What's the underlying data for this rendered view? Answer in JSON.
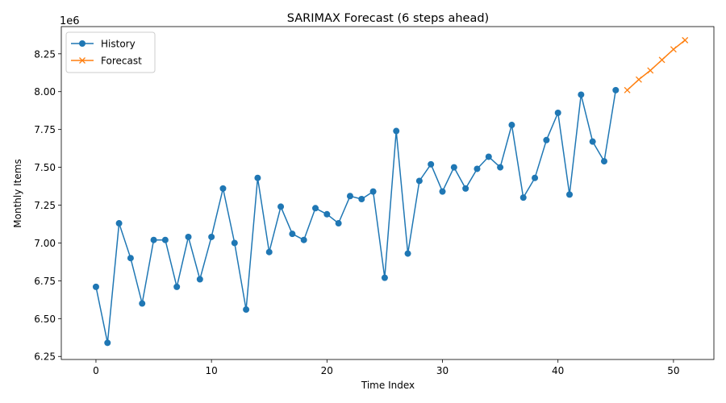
{
  "chart_data": {
    "type": "line",
    "title": "SARIMAX Forecast (6 steps ahead)",
    "xlabel": "Time Index",
    "ylabel": "Monthly Items",
    "offset_text": "1e6",
    "y_scale": 1000000,
    "xlim": [
      -3,
      53.5
    ],
    "ylim": [
      6230000,
      8430000
    ],
    "x_ticks": [
      0,
      10,
      20,
      30,
      40,
      50
    ],
    "x_tick_labels": [
      "0",
      "10",
      "20",
      "30",
      "40",
      "50"
    ],
    "y_ticks": [
      6250000,
      6500000,
      6750000,
      7000000,
      7250000,
      7500000,
      7750000,
      8000000,
      8250000
    ],
    "y_tick_labels": [
      "6.25",
      "6.50",
      "6.75",
      "7.00",
      "7.25",
      "7.50",
      "7.75",
      "8.00",
      "8.25"
    ],
    "grid": false,
    "legend_position": "upper left",
    "series": [
      {
        "name": "History",
        "color": "#1f77b4",
        "marker": "circle",
        "x": [
          0,
          1,
          2,
          3,
          4,
          5,
          6,
          7,
          8,
          9,
          10,
          11,
          12,
          13,
          14,
          15,
          16,
          17,
          18,
          19,
          20,
          21,
          22,
          23,
          24,
          25,
          26,
          27,
          28,
          29,
          30,
          31,
          32,
          33,
          34,
          35,
          36,
          37,
          38,
          39,
          40,
          41,
          42,
          43,
          44,
          45
        ],
        "values": [
          6710000,
          6340000,
          7130000,
          6900000,
          6600000,
          7020000,
          7020000,
          6710000,
          7040000,
          6760000,
          7040000,
          7360000,
          7000000,
          6560000,
          7430000,
          6940000,
          7240000,
          7060000,
          7020000,
          7230000,
          7190000,
          7130000,
          7310000,
          7290000,
          7340000,
          6770000,
          7740000,
          6930000,
          7410000,
          7520000,
          7340000,
          7500000,
          7360000,
          7490000,
          7570000,
          7500000,
          7780000,
          7300000,
          7430000,
          7680000,
          7860000,
          7320000,
          7980000,
          7670000,
          7540000,
          8010000
        ]
      },
      {
        "name": "Forecast",
        "color": "#ff7f0e",
        "marker": "x",
        "x": [
          46,
          47,
          48,
          49,
          50,
          51
        ],
        "values": [
          8010000,
          8080000,
          8140000,
          8210000,
          8280000,
          8340000
        ]
      }
    ]
  }
}
